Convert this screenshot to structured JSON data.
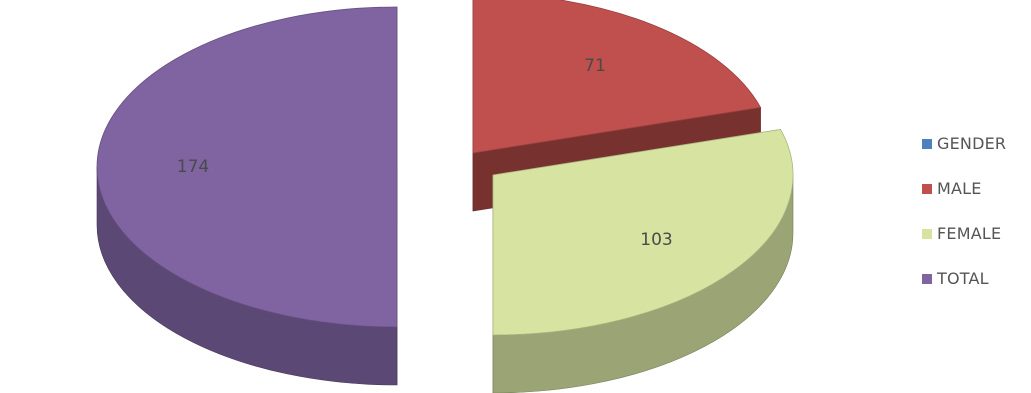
{
  "chart_data": {
    "type": "pie",
    "style": "3d-exploded",
    "slices": [
      {
        "name": "MALE",
        "value": 71,
        "label": "71",
        "color": "#c0504d"
      },
      {
        "name": "FEMALE",
        "value": 103,
        "label": "103",
        "color": "#d7e4a1"
      },
      {
        "name": "TOTAL",
        "value": 174,
        "label": "174",
        "color": "#8064a2"
      }
    ],
    "legend": {
      "placement": "right",
      "entries": [
        {
          "name": "GENDER",
          "color": "#4f81bd"
        },
        {
          "name": "MALE",
          "color": "#c0504d"
        },
        {
          "name": "FEMALE",
          "color": "#d7e4a1"
        },
        {
          "name": "TOTAL",
          "color": "#8064a2"
        }
      ]
    }
  }
}
